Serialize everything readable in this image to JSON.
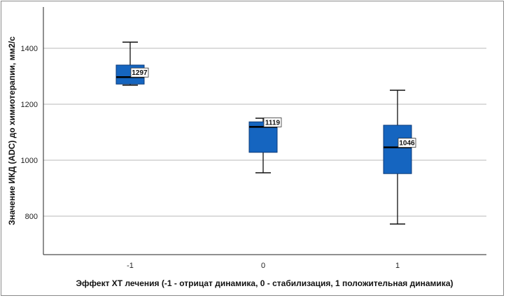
{
  "chart_data": {
    "type": "boxplot",
    "title": "",
    "xlabel": "Эффект ХТ лечения (-1 - отрицат динамика, 0 - стабилизация, 1 положительная динамика)",
    "ylabel": "Значение ИКД (ADC) до химиотерапии, мм2/с",
    "ylim": [
      660,
      1550
    ],
    "yticks": [
      800,
      1000,
      1200,
      1400
    ],
    "grid": true,
    "box_color": "#1565c0",
    "categories": [
      "-1",
      "0",
      "1"
    ],
    "boxes": [
      {
        "category": "-1",
        "min": 1268,
        "q1": 1272,
        "median": 1297,
        "q3": 1340,
        "max": 1422,
        "median_label": "1297"
      },
      {
        "category": "0",
        "min": 955,
        "q1": 1028,
        "median": 1119,
        "q3": 1137,
        "max": 1150,
        "median_label": "1119"
      },
      {
        "category": "1",
        "min": 772,
        "q1": 952,
        "median": 1046,
        "q3": 1125,
        "max": 1250,
        "median_label": "1046"
      }
    ]
  }
}
